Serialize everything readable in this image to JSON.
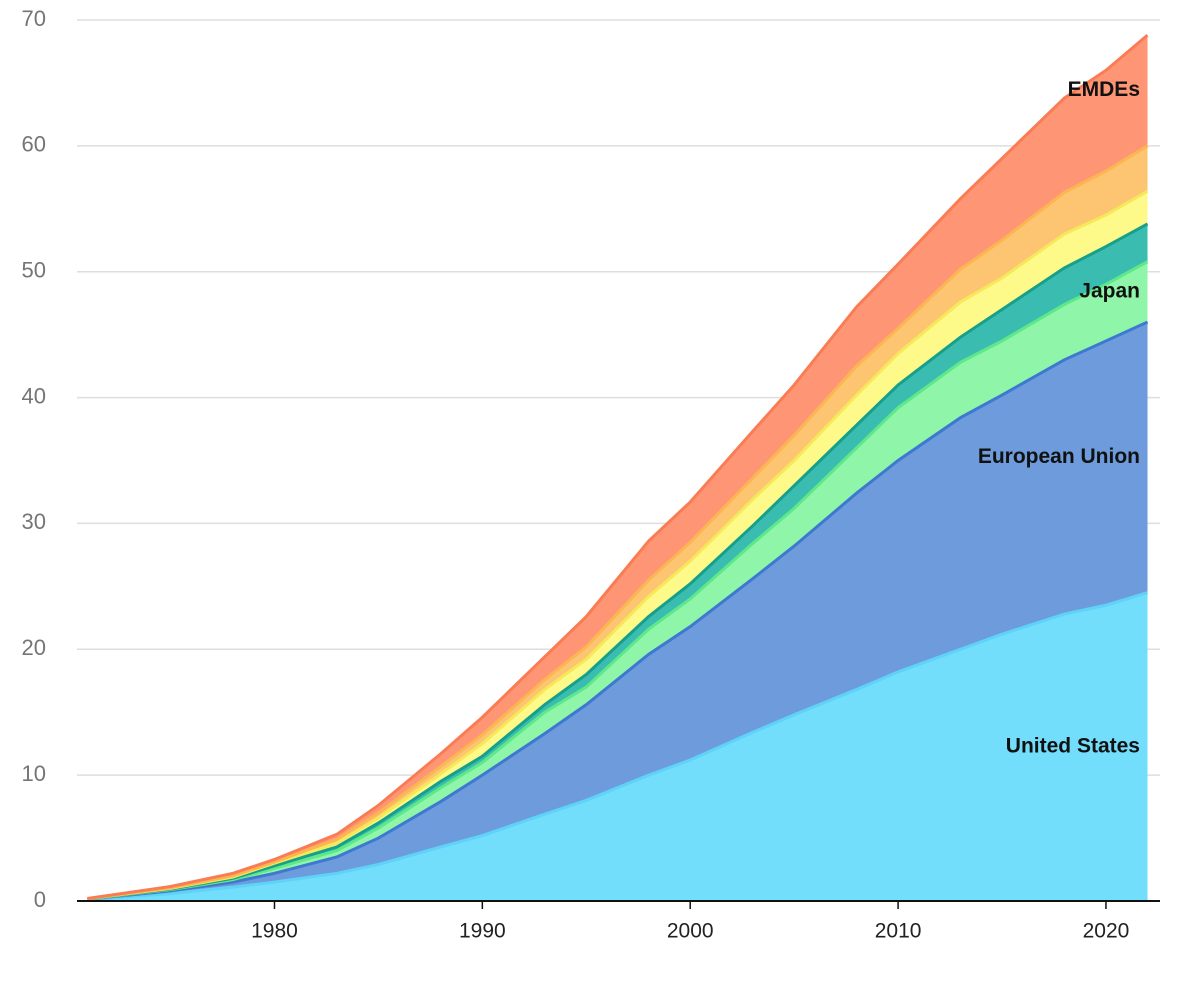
{
  "chart_data": {
    "type": "stacked-area",
    "x": [
      1971,
      1975,
      1978,
      1980,
      1983,
      1985,
      1988,
      1990,
      1993,
      1995,
      1998,
      2000,
      2003,
      2005,
      2008,
      2010,
      2013,
      2015,
      2018,
      2020,
      2022
    ],
    "series": [
      {
        "name": "United States",
        "color": "#73ddfc",
        "line_color": "#5fd3f7",
        "values": [
          0.1,
          0.6,
          1.1,
          1.5,
          2.2,
          2.9,
          4.3,
          5.2,
          6.9,
          8.0,
          10.0,
          11.2,
          13.4,
          14.8,
          16.8,
          18.2,
          20.0,
          21.2,
          22.8,
          23.5,
          24.5
        ]
      },
      {
        "name": "European Union",
        "color": "#6d9bdc",
        "line_color": "#3e78d0",
        "values": [
          0.05,
          0.2,
          0.4,
          0.7,
          1.3,
          2.1,
          3.6,
          4.8,
          6.4,
          7.6,
          9.6,
          10.6,
          12.2,
          13.4,
          15.6,
          16.8,
          18.4,
          19.0,
          20.2,
          21.0,
          21.5
        ]
      },
      {
        "name": "Japan",
        "color": "#8ff5a8",
        "line_color": "#5ee88a",
        "values": [
          0.01,
          0.1,
          0.2,
          0.4,
          0.5,
          0.8,
          1.1,
          1.0,
          1.7,
          1.4,
          2.0,
          2.2,
          2.8,
          3.0,
          3.6,
          4.2,
          4.4,
          4.3,
          4.4,
          4.5,
          4.8
        ]
      },
      {
        "name": null,
        "color": "#3bbcb0",
        "line_color": "#16a08c",
        "values": [
          0.01,
          0.05,
          0.1,
          0.2,
          0.3,
          0.4,
          0.5,
          0.5,
          0.6,
          1.0,
          1.0,
          1.2,
          1.4,
          1.8,
          1.8,
          1.8,
          2.0,
          2.5,
          2.9,
          3.0,
          3.0
        ]
      },
      {
        "name": null,
        "color": "#fdfa8a",
        "line_color": "#f7e85a",
        "values": [
          0.01,
          0.05,
          0.1,
          0.2,
          0.3,
          0.4,
          0.6,
          1.0,
          1.2,
          1.2,
          1.6,
          1.8,
          2.1,
          2.0,
          2.4,
          2.5,
          2.8,
          2.5,
          2.7,
          2.5,
          2.6
        ]
      },
      {
        "name": null,
        "color": "#fdc472",
        "line_color": "#fbb651",
        "values": [
          0.01,
          0.05,
          0.1,
          0.1,
          0.3,
          0.4,
          0.6,
          0.7,
          0.8,
          1.0,
          1.3,
          1.5,
          1.7,
          2.0,
          2.3,
          2.0,
          2.6,
          3.0,
          3.3,
          3.5,
          3.6
        ]
      },
      {
        "name": "EMDEs",
        "color": "#fe9676",
        "line_color": "#f97c54",
        "values": [
          0.01,
          0.1,
          0.2,
          0.2,
          0.4,
          0.6,
          1.0,
          1.4,
          1.8,
          2.4,
          3.1,
          3.2,
          3.7,
          4.0,
          4.7,
          5.1,
          5.6,
          6.5,
          7.5,
          8.0,
          8.8
        ]
      }
    ],
    "xlim": [
      1970.5,
      2022.6
    ],
    "xticks": [
      1980,
      1990,
      2000,
      2010,
      2020
    ],
    "ylim": [
      0,
      70
    ],
    "yticks": [
      0,
      10,
      20,
      30,
      40,
      50,
      60,
      70
    ],
    "grid": true
  }
}
